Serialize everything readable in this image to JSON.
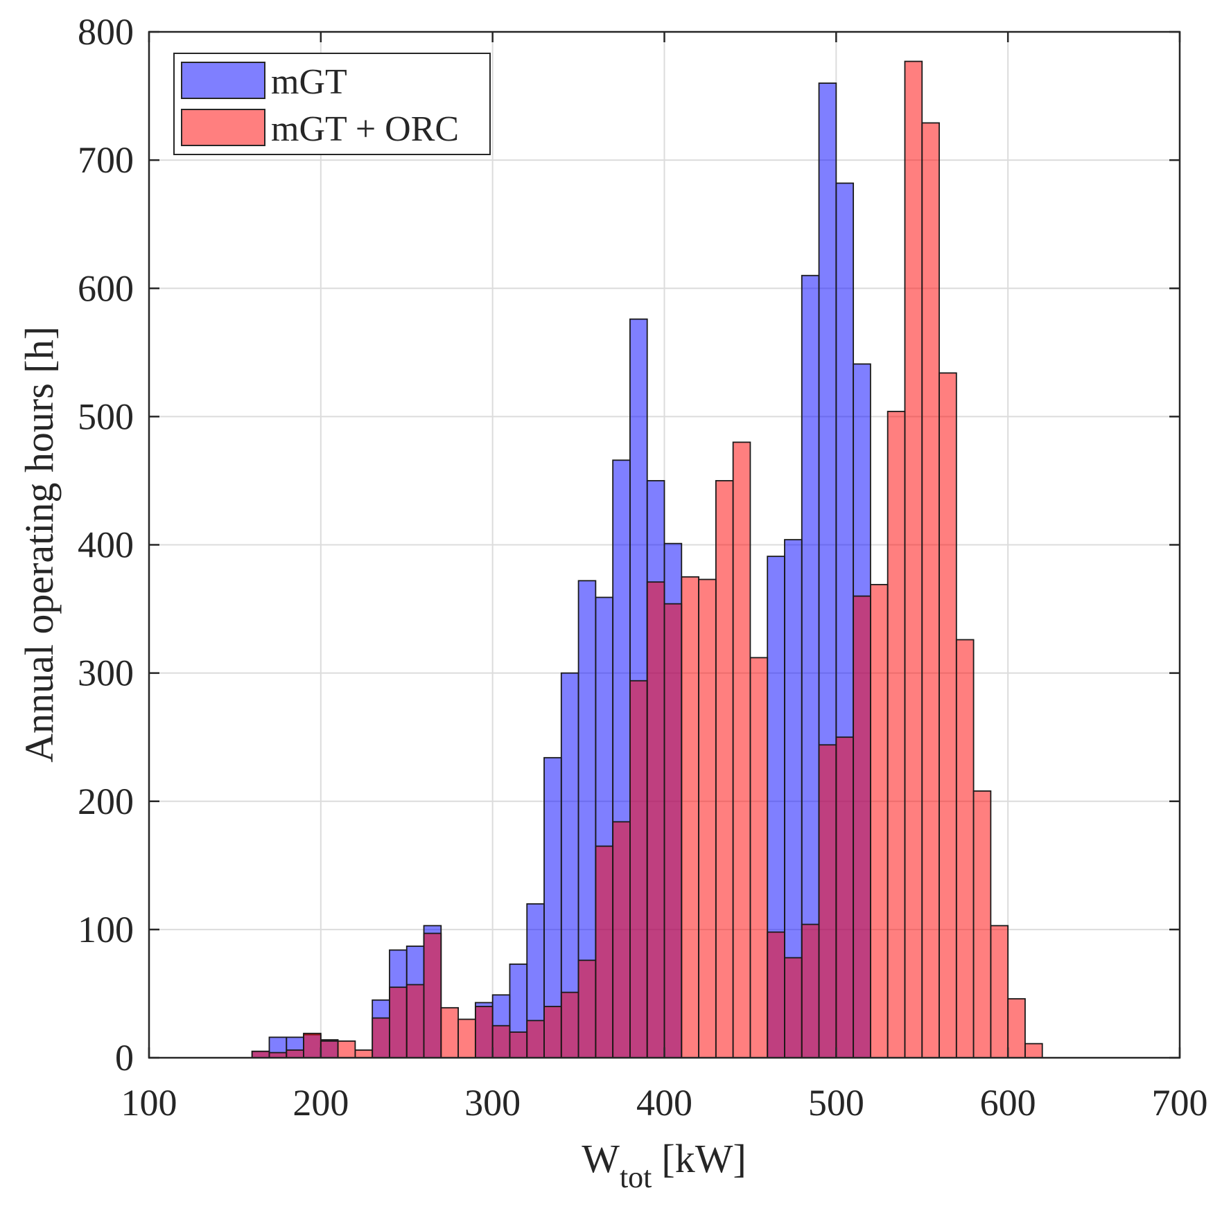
{
  "chart_data": {
    "type": "bar",
    "subtype": "overlapping-histogram",
    "title": "",
    "xlabel": {
      "main": "W",
      "subscript": "tot",
      "unit": "[kW]"
    },
    "ylabel": "Annual operating hours [h]",
    "xlim": [
      100,
      700
    ],
    "ylim": [
      0,
      800
    ],
    "xticks": [
      100,
      200,
      300,
      400,
      500,
      600,
      700
    ],
    "yticks": [
      0,
      100,
      200,
      300,
      400,
      500,
      600,
      700,
      800
    ],
    "xtick_labels": [
      "100",
      "200",
      "300",
      "400",
      "500",
      "600",
      "700"
    ],
    "ytick_labels": [
      "0",
      "100",
      "200",
      "300",
      "400",
      "500",
      "600",
      "700",
      "800"
    ],
    "grid": true,
    "legend_position": "top-left",
    "bin_width": 10,
    "x": [
      165,
      175,
      185,
      195,
      205,
      215,
      225,
      235,
      245,
      255,
      265,
      275,
      285,
      295,
      305,
      315,
      325,
      335,
      345,
      355,
      365,
      375,
      385,
      395,
      405,
      415,
      425,
      435,
      445,
      455,
      465,
      475,
      485,
      495,
      505,
      515,
      525,
      535,
      545,
      555,
      565,
      575,
      585,
      595,
      605,
      615
    ],
    "series": [
      {
        "name": "mGT",
        "color": "#0000ff",
        "values": [
          5,
          16,
          16,
          18,
          14,
          0,
          0,
          45,
          84,
          87,
          103,
          0,
          0,
          43,
          49,
          73,
          120,
          234,
          300,
          372,
          359,
          466,
          576,
          450,
          401,
          0,
          0,
          0,
          0,
          0,
          391,
          404,
          610,
          760,
          682,
          541,
          0,
          0,
          0,
          0,
          0,
          0,
          0,
          0,
          0,
          0
        ]
      },
      {
        "name": "mGT + ORC",
        "color": "#ff0000",
        "values": [
          5,
          4,
          6,
          19,
          13,
          13,
          6,
          31,
          55,
          57,
          97,
          39,
          30,
          40,
          25,
          20,
          29,
          40,
          51,
          76,
          165,
          184,
          294,
          371,
          354,
          375,
          373,
          450,
          480,
          312,
          98,
          78,
          104,
          244,
          250,
          360,
          369,
          504,
          777,
          729,
          534,
          326,
          208,
          103,
          46,
          11
        ]
      }
    ]
  }
}
